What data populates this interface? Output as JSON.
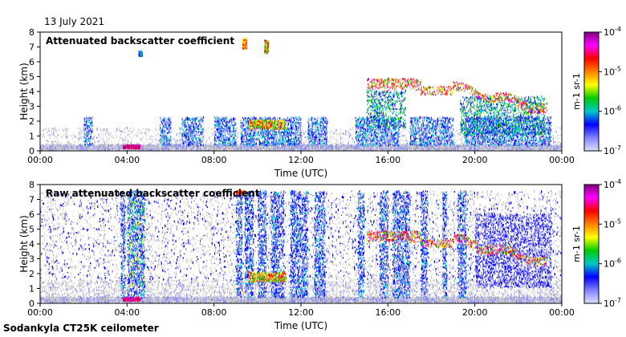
{
  "page": {
    "date": "13 July 2021",
    "footer": "Sodankyla CT25K ceilometer"
  },
  "colorbar": {
    "labels": [
      "10-4",
      "10-5",
      "10-6",
      "10-7"
    ],
    "exponents": [
      "-4",
      "-5",
      "-6",
      "-7"
    ],
    "unit_label": "m-1 sr-1",
    "colors": [
      "#800080",
      "#ff00ff",
      "#ff0000",
      "#ff8000",
      "#ffff00",
      "#00cc00",
      "#00c8c8",
      "#0000ff",
      "#8080ff",
      "#e0e0ff"
    ]
  },
  "chart_data": [
    {
      "type": "heatmap",
      "title": "Attenuated backscatter coefficient",
      "xlabel": "Time (UTC)",
      "ylabel": "Height (km)",
      "xticks": [
        "00:00",
        "04:00",
        "08:00",
        "12:00",
        "16:00",
        "20:00",
        "00:00"
      ],
      "xlim": [
        0,
        24
      ],
      "ylim": [
        0,
        8
      ],
      "yticks": [
        "0",
        "1",
        "2",
        "3",
        "4",
        "5",
        "6",
        "7",
        "8"
      ],
      "colorscale": "log10 backscatter, 1e-7 to 1e-4 m-1 sr-1",
      "features": [
        {
          "name": "cloud layer",
          "time_start": 15.0,
          "time_end": 23.3,
          "height_km": 4.2,
          "intensity": "high"
        },
        {
          "name": "low cloud",
          "time_start": 9.6,
          "time_end": 11.3,
          "height_km": 1.7,
          "intensity": "medium"
        },
        {
          "name": "surface layer",
          "time_start": 3.8,
          "time_end": 4.6,
          "height_km": 0.2,
          "intensity": "high"
        },
        {
          "name": "high cloud",
          "time_start": 9.3,
          "time_end": 10.2,
          "height_km": 7.3,
          "intensity": "high"
        }
      ]
    },
    {
      "type": "heatmap",
      "title": "Raw attenuated backscatter coefficient",
      "xlabel": "Time (UTC)",
      "ylabel": "Height (km)",
      "xticks": [
        "00:00",
        "04:00",
        "08:00",
        "12:00",
        "16:00",
        "20:00",
        "00:00"
      ],
      "xlim": [
        0,
        24
      ],
      "ylim": [
        0,
        8
      ],
      "yticks": [
        "0",
        "1",
        "2",
        "3",
        "4",
        "5",
        "6",
        "7",
        "8"
      ],
      "colorscale": "log10 backscatter, 1e-7 to 1e-4 m-1 sr-1",
      "features": [
        {
          "name": "cloud layer",
          "time_start": 15.0,
          "time_end": 23.3,
          "height_km": 4.2,
          "intensity": "high"
        },
        {
          "name": "precipitation column",
          "time_start": 4.0,
          "time_end": 4.8,
          "height_km": 7.5,
          "intensity": "medium"
        },
        {
          "name": "noisy columns",
          "time_start": 9.0,
          "time_end": 13.0,
          "height_km": 7.5,
          "intensity": "medium"
        }
      ]
    }
  ]
}
